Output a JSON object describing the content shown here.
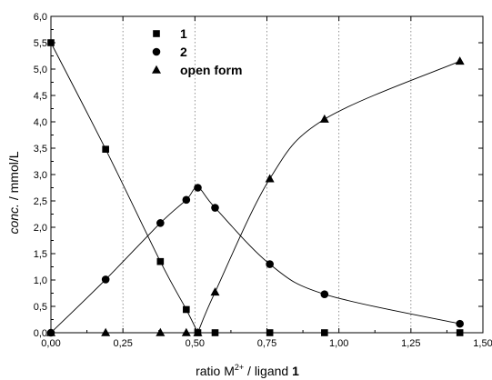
{
  "chart_data": {
    "type": "scatter",
    "title": "",
    "xlabel_parts": {
      "prefix": "ratio M",
      "sup": "2+",
      "middle": " / ligand ",
      "bold": "1"
    },
    "ylabel_parts": {
      "italic": "conc.",
      "rest": " / mmol/L"
    },
    "xlim": [
      0.0,
      1.5
    ],
    "ylim": [
      0.0,
      6.0
    ],
    "x_ticks": [
      0.0,
      0.25,
      0.5,
      0.75,
      1.0,
      1.25,
      1.5
    ],
    "x_tick_labels": [
      "0,00",
      "0,25",
      "0,50",
      "0,75",
      "1,00",
      "1,25",
      "1,50"
    ],
    "y_ticks": [
      0.0,
      0.5,
      1.0,
      1.5,
      2.0,
      2.5,
      3.0,
      3.5,
      4.0,
      4.5,
      5.0,
      5.5,
      6.0
    ],
    "y_tick_labels": [
      "0,0",
      "0,5",
      "1,0",
      "1,5",
      "2,0",
      "2,5",
      "3,0",
      "3,5",
      "4,0",
      "4,5",
      "5,0",
      "5,5",
      "6,0"
    ],
    "grid": "dotted vertical lines at x ticks 0,25 / 0,50 / 0,75 / 1,00 / 1,25",
    "legend_position": "top-center",
    "series": [
      {
        "name": "1",
        "marker": "square",
        "x": [
          0.0,
          0.19,
          0.38,
          0.47,
          0.51,
          0.57,
          0.76,
          0.95,
          1.42
        ],
        "y": [
          5.5,
          3.48,
          1.35,
          0.44,
          0.0,
          0.0,
          0.0,
          0.0,
          0.0
        ],
        "curve": [
          [
            0.0,
            5.5
          ],
          [
            0.19,
            3.48
          ],
          [
            0.38,
            1.35
          ],
          [
            0.47,
            0.44
          ],
          [
            0.51,
            0.0
          ]
        ]
      },
      {
        "name": "2",
        "marker": "circle",
        "x": [
          0.0,
          0.19,
          0.38,
          0.47,
          0.51,
          0.57,
          0.76,
          0.95,
          1.42
        ],
        "y": [
          0.0,
          1.01,
          2.08,
          2.52,
          2.75,
          2.37,
          1.3,
          0.73,
          0.17
        ],
        "curve": [
          [
            0.0,
            0.0
          ],
          [
            0.19,
            1.01
          ],
          [
            0.38,
            2.08
          ],
          [
            0.47,
            2.52
          ],
          [
            0.51,
            2.75
          ],
          [
            0.57,
            2.37
          ],
          [
            0.76,
            1.3
          ],
          [
            0.95,
            0.73
          ],
          [
            1.42,
            0.17
          ]
        ]
      },
      {
        "name": "open form",
        "marker": "triangle",
        "x": [
          0.0,
          0.19,
          0.38,
          0.47,
          0.51,
          0.57,
          0.76,
          0.95,
          1.42
        ],
        "y": [
          0.0,
          0.0,
          0.0,
          0.0,
          0.0,
          0.77,
          2.92,
          4.05,
          5.15
        ],
        "curve": [
          [
            0.51,
            0.0
          ],
          [
            0.57,
            0.77
          ],
          [
            0.76,
            2.92
          ],
          [
            0.95,
            4.05
          ],
          [
            1.42,
            5.15
          ]
        ]
      }
    ]
  }
}
